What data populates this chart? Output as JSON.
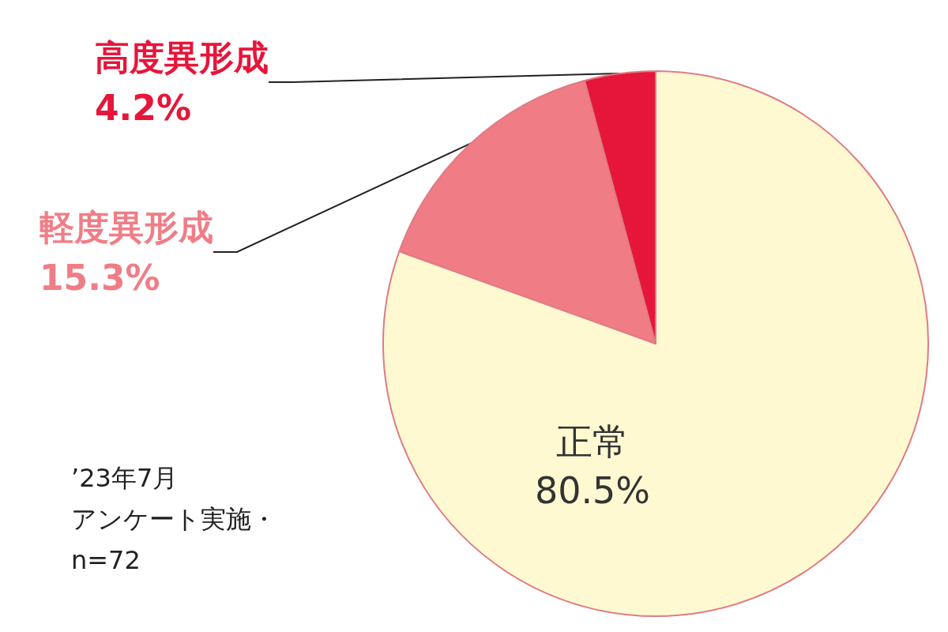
{
  "chart_data": {
    "type": "pie",
    "categories": [
      "正常",
      "軽度異形成",
      "高度異形成"
    ],
    "values": [
      80.5,
      15.3,
      4.2
    ],
    "value_labels": [
      "80.5%",
      "15.3%",
      "4.2%"
    ],
    "colors": [
      "#fff9d2",
      "#f07d86",
      "#e6163a"
    ],
    "annotations": [
      "’23年7月",
      "アンケート実施・",
      "n=72"
    ]
  }
}
